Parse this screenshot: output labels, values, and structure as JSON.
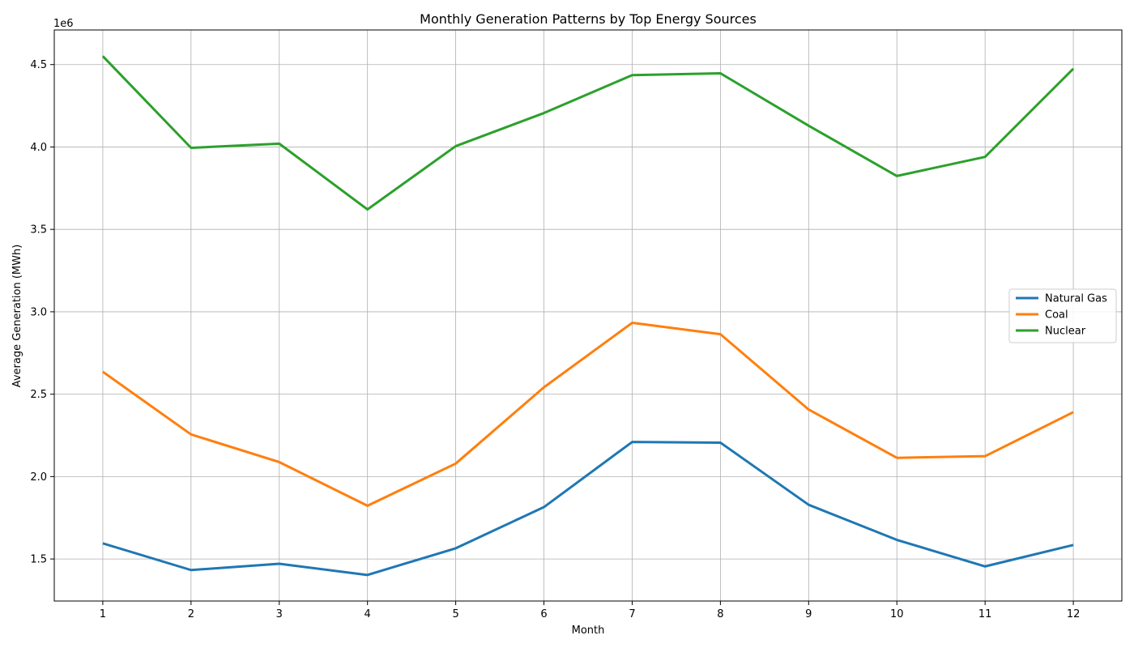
{
  "chart_data": {
    "type": "line",
    "title": "Monthly Generation Patterns by Top Energy Sources",
    "xlabel": "Month",
    "ylabel": "Average Generation (MWh)",
    "y_offset_text": "1e6",
    "x": [
      1,
      2,
      3,
      4,
      5,
      6,
      7,
      8,
      9,
      10,
      11,
      12
    ],
    "x_ticks": [
      "1",
      "2",
      "3",
      "4",
      "5",
      "6",
      "7",
      "8",
      "9",
      "10",
      "11",
      "12"
    ],
    "y_ticks": [
      "1.5",
      "2.0",
      "2.5",
      "3.0",
      "3.5",
      "4.0",
      "4.5"
    ],
    "y_tick_values": [
      1.5,
      2.0,
      2.5,
      3.0,
      3.5,
      4.0,
      4.5
    ],
    "xlim": [
      0.45,
      12.55
    ],
    "ylim": [
      1.245,
      4.71
    ],
    "grid": true,
    "legend_position": "center-right",
    "series": [
      {
        "name": "Natural Gas",
        "color": "#1f77b4",
        "values": [
          1.595,
          1.433,
          1.471,
          1.403,
          1.565,
          1.815,
          2.21,
          2.206,
          1.829,
          1.616,
          1.455,
          1.585
        ]
      },
      {
        "name": "Coal",
        "color": "#ff7f0e",
        "values": [
          2.636,
          2.256,
          2.088,
          1.823,
          2.079,
          2.542,
          2.933,
          2.864,
          2.407,
          2.114,
          2.124,
          2.391
        ]
      },
      {
        "name": "Nuclear",
        "color": "#2ca02c",
        "values": [
          4.551,
          3.995,
          4.02,
          3.621,
          4.005,
          4.206,
          4.436,
          4.447,
          4.129,
          3.824,
          3.94,
          4.475
        ]
      }
    ]
  }
}
